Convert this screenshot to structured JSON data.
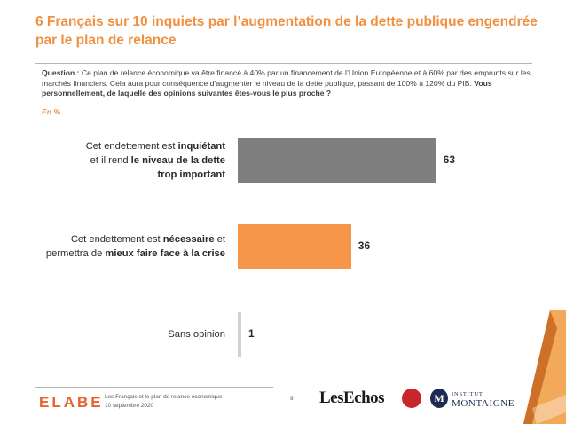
{
  "slide": {
    "title": "6 Français sur 10 inquiets par l’augmentation de la dette publique engendrée par le plan de relance",
    "question_label": "Question : ",
    "question_text": "Ce plan de relance économique va être financé à 40% par un financement de l’Union Européenne et à 60% par des emprunts sur les marchés financiers. Cela aura pour conséquence d’augmenter le niveau de la dette publique, passant de 100% à 120% du PIB. ",
    "question_ask": "Vous personnellement, de laquelle des opinions suivantes êtes-vous le plus proche ?",
    "unit": "En %"
  },
  "chart_data": {
    "type": "bar",
    "orientation": "horizontal",
    "categories": [
      "Cet endettement est inquiétant et il rend le niveau de la dette trop important",
      "Cet endettement est nécessaire et permettra de mieux faire face à la crise",
      "Sans opinion"
    ],
    "category_parts": [
      [
        [
          "Cet endettement est ",
          false
        ],
        [
          "inquiétant",
          true
        ],
        [
          "\n",
          false
        ],
        [
          "et il rend ",
          false
        ],
        [
          "le niveau de la dette",
          true
        ],
        [
          "\n",
          false
        ],
        [
          "trop important",
          true
        ]
      ],
      [
        [
          "Cet endettement est ",
          false
        ],
        [
          "nécessaire",
          true
        ],
        [
          " et",
          false
        ],
        [
          "\n",
          false
        ],
        [
          "permettra de ",
          false
        ],
        [
          "mieux faire face à la crise",
          true
        ]
      ],
      [
        [
          "Sans opinion",
          false
        ]
      ]
    ],
    "values": [
      63,
      36,
      1
    ],
    "value_labels": [
      "63",
      "36",
      "1"
    ],
    "colors": [
      "#7f7f7f",
      "#f6964a",
      "#d0d0d0"
    ],
    "xlim": [
      0,
      100
    ],
    "grid": false,
    "legend": "none"
  },
  "footer": {
    "logo": "ELABE",
    "study": "Les Français et le plan de relance économique",
    "date": "10 septembre 2020",
    "page": "9",
    "partner1": "LesEchos",
    "partner2_line1": "INSTITUT",
    "partner2_line2": "MONTAIGNE",
    "partner2_mark": "M"
  }
}
